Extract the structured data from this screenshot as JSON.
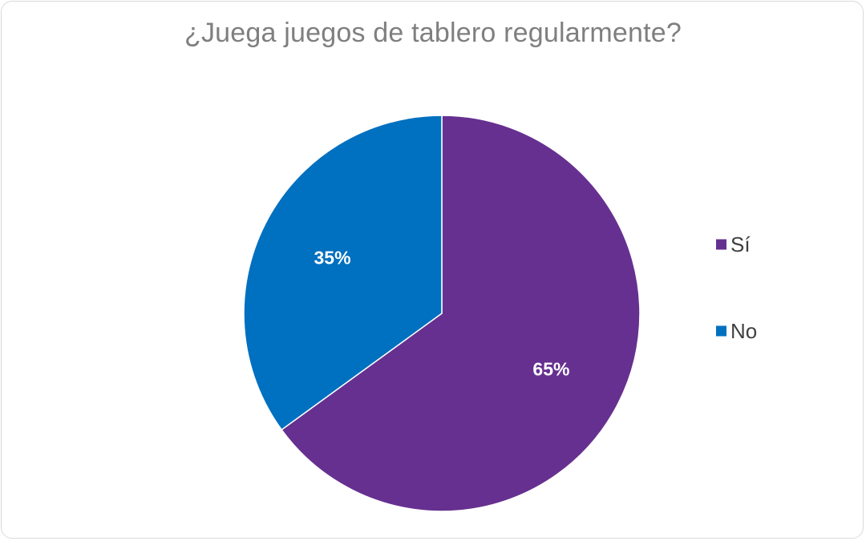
{
  "chart_data": {
    "type": "pie",
    "title": "¿Juega juegos de tablero regularmente?",
    "categories": [
      "Sí",
      "No"
    ],
    "values": [
      65,
      35
    ],
    "labels": [
      "65%",
      "35%"
    ],
    "colors": [
      "#663090",
      "#0070C0"
    ],
    "legend_position": "right"
  }
}
